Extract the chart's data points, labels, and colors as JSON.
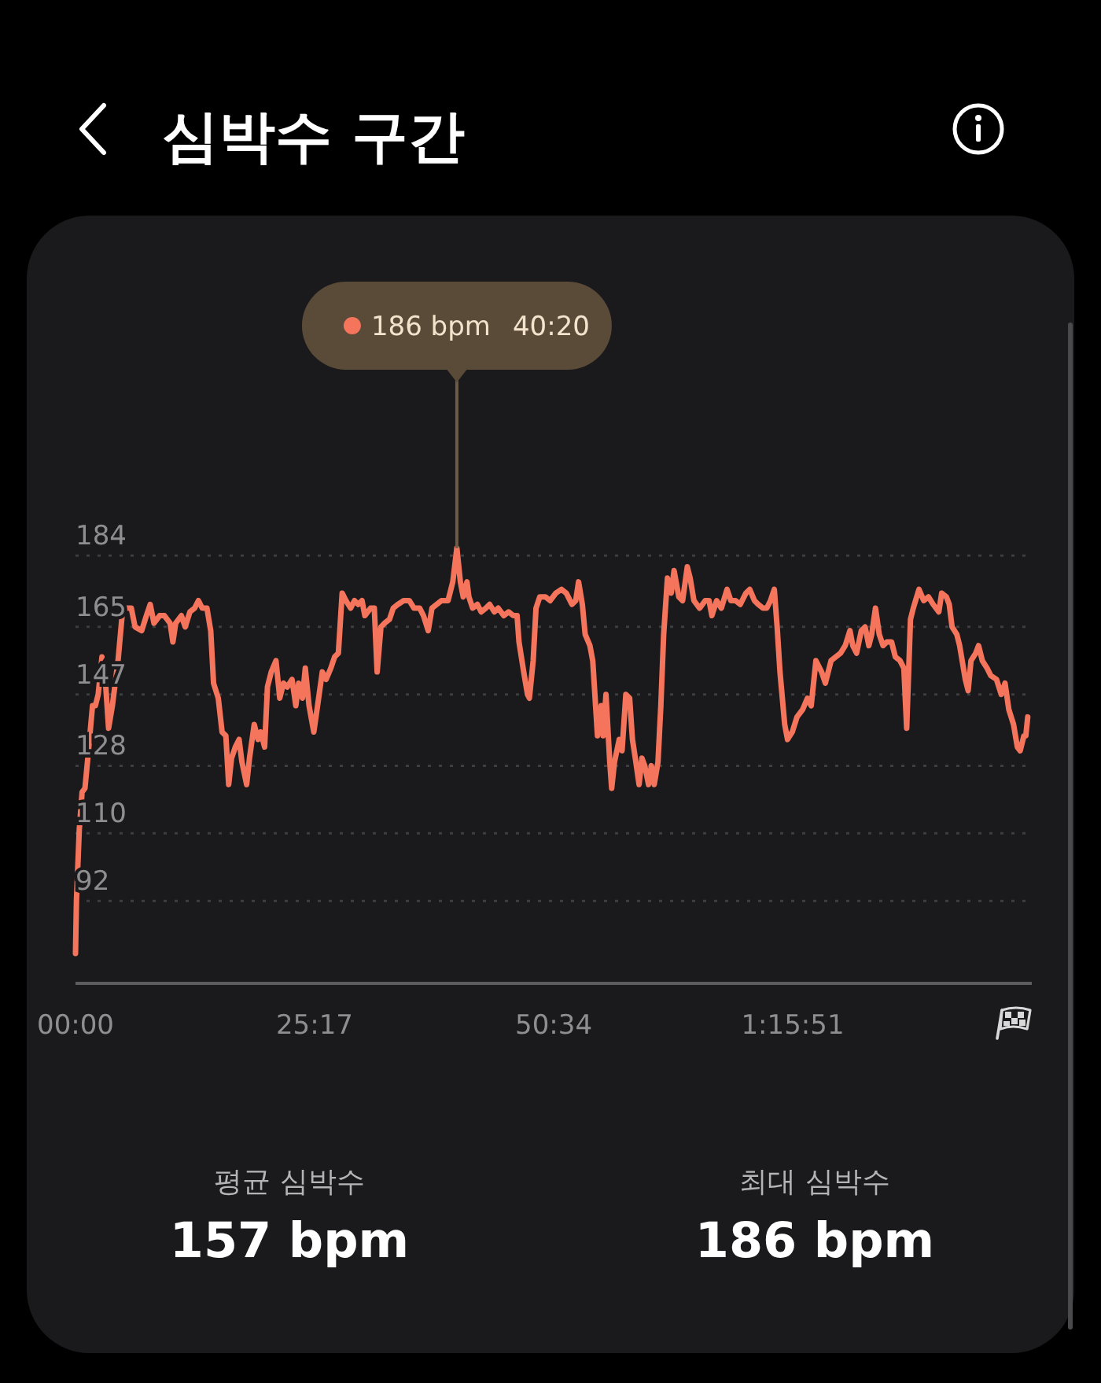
{
  "chart_data": {
    "type": "line",
    "title": "심박수 구간",
    "x": [
      0,
      0.1,
      0.4,
      0.7,
      1.0,
      1.3,
      1.8,
      2.1,
      2.4,
      2.8,
      3.1,
      3.5,
      3.9,
      4.2,
      4.5,
      5.0,
      5.3,
      5.9,
      6.3,
      7.0,
      7.5,
      7.9,
      8.3,
      8.9,
      9.4,
      10.0,
      10.3,
      10.6,
      11.2,
      11.6,
      12.1,
      12.6,
      13.0,
      13.4,
      13.9,
      14.3,
      14.6,
      15.1,
      15.5,
      15.9,
      16.2,
      16.5,
      16.9,
      17.3,
      17.6,
      18.1,
      18.4,
      18.9,
      19.3,
      19.6,
      20.0,
      20.3,
      20.7,
      21.2,
      21.6,
      22.0,
      22.4,
      22.9,
      23.3,
      23.6,
      24.0,
      24.3,
      24.7,
      25.2,
      25.6,
      26.1,
      26.5,
      27.0,
      27.4,
      27.8,
      28.2,
      28.6,
      29.1,
      29.5,
      29.9,
      30.3,
      30.6,
      31.2,
      31.6,
      31.9,
      32.3,
      32.7,
      33.2,
      33.6,
      34.1,
      34.7,
      35.3,
      35.8,
      36.4,
      36.8,
      37.3,
      37.7,
      38.2,
      38.7,
      39.4,
      39.9,
      40.33,
      40.7,
      41.0,
      41.4,
      41.6,
      42.0,
      42.5,
      42.9,
      43.4,
      43.8,
      44.3,
      44.7,
      45.3,
      45.8,
      46.3,
      46.7,
      46.9,
      47.4,
      47.8,
      48.0,
      48.4,
      48.7,
      49.1,
      49.7,
      50.2,
      50.8,
      51.4,
      51.9,
      52.5,
      52.9,
      53.2,
      53.6,
      53.9,
      54.4,
      54.7,
      55.0,
      55.2,
      55.6,
      55.8,
      56.1,
      56.5,
      56.7,
      57.0,
      57.5,
      57.8,
      58.2,
      58.6,
      58.9,
      59.2,
      59.6,
      59.9,
      60.2,
      60.6,
      60.9,
      61.2,
      61.6,
      61.9,
      62.2,
      62.6,
      63.0,
      63.3,
      63.8,
      64.2,
      64.7,
      65.0,
      65.4,
      66.0,
      66.6,
      67.0,
      67.3,
      67.8,
      68.3,
      68.9,
      69.3,
      69.8,
      70.3,
      70.9,
      71.3,
      71.8,
      72.2,
      72.7,
      73.1,
      73.5,
      73.9,
      74.2,
      74.5,
      75.0,
      75.3,
      75.8,
      76.3,
      76.9,
      77.4,
      77.8,
      78.3,
      78.9,
      79.3,
      79.9,
      80.4,
      80.9,
      81.4,
      81.9,
      82.2,
      82.6,
      83.1,
      83.5,
      83.9,
      84.2,
      84.6,
      85.0,
      85.4,
      85.8,
      86.3,
      86.7,
      87.2,
      87.6,
      87.9,
      88.3,
      88.6,
      89.2,
      89.7,
      90.2,
      90.7,
      91.3,
      91.6,
      92.1,
      92.4,
      92.7,
      93.2,
      93.5,
      94.1,
      94.4,
      94.7,
      95.2,
      95.5,
      95.9,
      96.4,
      96.8,
      97.4,
      97.9,
      98.3,
      98.7,
      99.2,
      99.6,
      99.9,
      100.3,
      100.5,
      100.7
    ],
    "series": [
      {
        "color": "#f5755c",
        "values": [
          78,
          92,
          111,
          121,
          122,
          130,
          144,
          144,
          147,
          157,
          153,
          138,
          144,
          150,
          156,
          170,
          170,
          170,
          165,
          164,
          168,
          171,
          166,
          168,
          168,
          166,
          161,
          166,
          168,
          165,
          169,
          170,
          172,
          170,
          170,
          164,
          150,
          146,
          137,
          136,
          123,
          130,
          133,
          135,
          129,
          123,
          130,
          139,
          135,
          137,
          133,
          149,
          153,
          156,
          146,
          150,
          149,
          151,
          144,
          150,
          146,
          154,
          144,
          137,
          144,
          153,
          151,
          154,
          157,
          158,
          174,
          172,
          170,
          172,
          171,
          172,
          168,
          170,
          170,
          153,
          165,
          166,
          167,
          170,
          171,
          172,
          172,
          170,
          170,
          168,
          164,
          170,
          171,
          172,
          172,
          177,
          186,
          177,
          173,
          177,
          173,
          170,
          171,
          169,
          170,
          171,
          169,
          170,
          168,
          169,
          168,
          168,
          161,
          153,
          147,
          146,
          156,
          170,
          173,
          173,
          172,
          174,
          175,
          174,
          171,
          172,
          177,
          171,
          163,
          160,
          156,
          144,
          136,
          144,
          136,
          147,
          129,
          122,
          129,
          135,
          132,
          147,
          146,
          135,
          130,
          123,
          130,
          128,
          123,
          128,
          123,
          129,
          144,
          163,
          178,
          174,
          180,
          173,
          172,
          181,
          178,
          172,
          170,
          172,
          172,
          168,
          172,
          170,
          175,
          172,
          172,
          171,
          174,
          175,
          172,
          171,
          170,
          170,
          172,
          175,
          165,
          153,
          139,
          135,
          137,
          141,
          143,
          146,
          144,
          156,
          153,
          150,
          156,
          157,
          158,
          160,
          164,
          160,
          158,
          164,
          165,
          160,
          163,
          170,
          163,
          160,
          161,
          161,
          157,
          156,
          154,
          138,
          167,
          170,
          175,
          172,
          173,
          171,
          169,
          174,
          173,
          171,
          165,
          163,
          160,
          151,
          148,
          156,
          158,
          160,
          156,
          154,
          152,
          151,
          147,
          150,
          143,
          139,
          133,
          132,
          136,
          136,
          141
        ]
      }
    ],
    "xlim": [
      0,
      101.13
    ],
    "xticks": [
      {
        "value": 0,
        "label": "00:00"
      },
      {
        "value": 25.28,
        "label": "25:17"
      },
      {
        "value": 50.57,
        "label": "50:34"
      },
      {
        "value": 75.85,
        "label": "1:15:51"
      }
    ],
    "ylim": [
      -28.5,
      274.6
    ],
    "yticks": [
      92,
      110,
      128,
      147,
      165,
      184
    ],
    "grid": "y",
    "annotations": [
      {
        "text": "186 bpm 40:20",
        "x": 40.33,
        "y": 186
      },
      "평균 심박수",
      "157 bpm",
      "최대 심박수",
      "186 bpm"
    ]
  }
}
